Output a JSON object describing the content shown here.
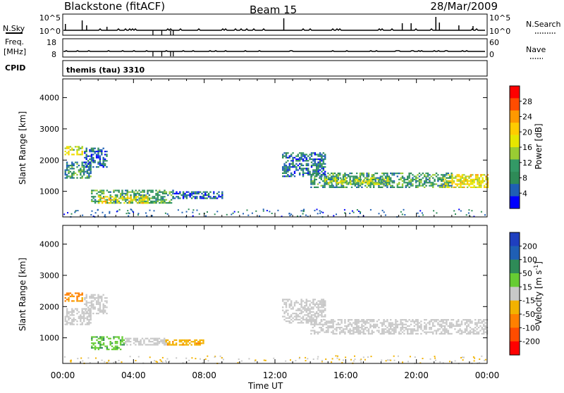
{
  "header": {
    "station": "Blackstone (fitACF)",
    "beam": "Beam 15",
    "date": "28/Mar/2009"
  },
  "panels": {
    "nsky": {
      "left_label": "N.Sky",
      "right_label": "N.Search",
      "ticks_left": [
        "10^5",
        "10^0"
      ],
      "ticks_right": [
        "10^5",
        "10^0"
      ]
    },
    "freq": {
      "left_label_1": "Freq.",
      "left_label_2": "[MHz]",
      "right_label": "Nave",
      "ticks_left": [
        "18",
        "8"
      ],
      "ticks_right": [
        "60",
        "0"
      ]
    },
    "cpid": {
      "label": "CPID",
      "text": "themis (tau) 3310"
    }
  },
  "colorbars": {
    "power": {
      "label": "Power [dB]",
      "ticks": [
        "28",
        "24",
        "20",
        "16",
        "12",
        "8",
        "4"
      ],
      "colors": [
        "#ff0000",
        "#ff4c00",
        "#ff9900",
        "#ffcc00",
        "#e6e600",
        "#99cc33",
        "#339966",
        "#2e8b57",
        "#1f5fb4",
        "#0000ff"
      ]
    },
    "velocity": {
      "label": "Velocity [m s",
      "label_sup": "-1",
      "label_end": "]",
      "ticks": [
        "200",
        "100",
        "50",
        "15",
        "-15",
        "-50",
        "-100",
        "-200"
      ],
      "colors": [
        "#1f3fbf",
        "#1f5fb4",
        "#2e8b57",
        "#66cc33",
        "#c8c8c8",
        "#f2b200",
        "#ff8000",
        "#ff4c00",
        "#ff0000"
      ]
    }
  },
  "axes": {
    "ylabel": "Slant Range [km]",
    "xlabel": "Time UT",
    "x_ticks": [
      "00:00",
      "04:00",
      "08:00",
      "12:00",
      "16:00",
      "20:00",
      "00:00"
    ],
    "y_ticks": [
      "4000",
      "3000",
      "2000",
      "1000"
    ]
  },
  "chart_data": [
    {
      "type": "heatmap",
      "name": "Power",
      "xlabel": "Time UT",
      "ylabel": "Slant Range [km]",
      "xlim_hours": [
        0,
        24
      ],
      "ylim_km": [
        180,
        4600
      ],
      "color_scale": "Power [dB]",
      "regions": [
        {
          "t": [
            0.1,
            1.1
          ],
          "r": [
            2200,
            2450
          ],
          "value": 18
        },
        {
          "t": [
            0.1,
            1.6
          ],
          "r": [
            1450,
            1950
          ],
          "value": 10
        },
        {
          "t": [
            1.2,
            2.5
          ],
          "r": [
            1800,
            2400
          ],
          "value": 6
        },
        {
          "t": [
            1.6,
            6.2
          ],
          "r": [
            620,
            1050
          ],
          "value": 12
        },
        {
          "t": [
            2.0,
            4.8
          ],
          "r": [
            650,
            850
          ],
          "value": 20
        },
        {
          "t": [
            6.2,
            9.0
          ],
          "r": [
            780,
            1000
          ],
          "value": 6
        },
        {
          "t": [
            12.4,
            14.8
          ],
          "r": [
            1500,
            2250
          ],
          "value": 8
        },
        {
          "t": [
            14.0,
            22.0
          ],
          "r": [
            1150,
            1600
          ],
          "value": 11
        },
        {
          "t": [
            14.8,
            18.5
          ],
          "r": [
            1250,
            1450
          ],
          "value": 17
        },
        {
          "t": [
            21.5,
            24.0
          ],
          "r": [
            1150,
            1550
          ],
          "value": 20
        }
      ]
    },
    {
      "type": "heatmap",
      "name": "Velocity",
      "xlabel": "Time UT",
      "ylabel": "Slant Range [km]",
      "xlim_hours": [
        0,
        24
      ],
      "ylim_km": [
        180,
        4600
      ],
      "color_scale": "Velocity [m s-1]",
      "regions": [
        {
          "t": [
            0.1,
            1.1
          ],
          "r": [
            2200,
            2450
          ],
          "value": -60
        },
        {
          "t": [
            0.1,
            1.6
          ],
          "r": [
            1450,
            1950
          ],
          "value": 0
        },
        {
          "t": [
            1.2,
            2.5
          ],
          "r": [
            1800,
            2400
          ],
          "value": 0
        },
        {
          "t": [
            1.6,
            3.5
          ],
          "r": [
            620,
            1050
          ],
          "value": 40
        },
        {
          "t": [
            3.5,
            5.8
          ],
          "r": [
            780,
            1000
          ],
          "value": 0
        },
        {
          "t": [
            5.8,
            8.0
          ],
          "r": [
            780,
            950
          ],
          "value": -40
        },
        {
          "t": [
            12.4,
            14.8
          ],
          "r": [
            1500,
            2250
          ],
          "value": 0
        },
        {
          "t": [
            14.0,
            24.0
          ],
          "r": [
            1150,
            1600
          ],
          "value": 0
        }
      ]
    }
  ]
}
